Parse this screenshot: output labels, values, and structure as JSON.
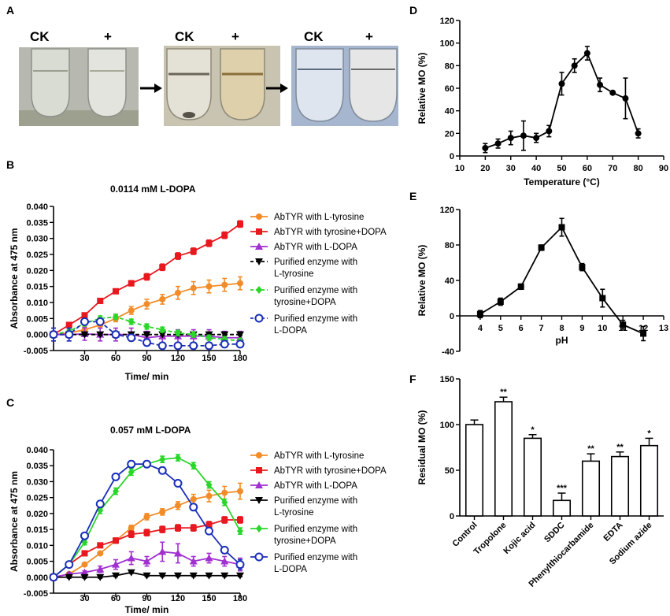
{
  "panels": {
    "A": {
      "label": "A",
      "tubes": [
        {
          "ck_label": "CK",
          "plus_label": "+"
        },
        {
          "ck_label": "CK",
          "plus_label": "+"
        },
        {
          "ck_label": "CK",
          "plus_label": "+"
        }
      ]
    }
  },
  "chart_data": [
    {
      "panel": "B",
      "type": "line",
      "title": "0.0114 mM L-DOPA",
      "xlabel": "Time/ min",
      "ylabel": "Absorbance at 475 nm",
      "xlim": [
        0,
        180
      ],
      "ylim": [
        -0.005,
        0.04
      ],
      "xticks": [
        30,
        60,
        90,
        120,
        150,
        180
      ],
      "yticks": [
        -0.005,
        0,
        0.005,
        0.01,
        0.015,
        0.02,
        0.025,
        0.03,
        0.035,
        0.04
      ],
      "ytick_labels": [
        "-0.005",
        "0.000",
        "0.005",
        "0.010",
        "0.015",
        "0.020",
        "0.025",
        "0.030",
        "0.035",
        "0.040"
      ],
      "series": [
        {
          "name": "AbTYR with L-tyrosine",
          "legend_lines": [
            "AbTYR with L-tyrosine"
          ],
          "color": "#f28c28",
          "marker": "circle",
          "dash": false,
          "x": [
            0,
            15,
            30,
            45,
            60,
            75,
            90,
            105,
            120,
            135,
            150,
            165,
            180
          ],
          "y": [
            0,
            0.0005,
            0.0015,
            0.003,
            0.005,
            0.0075,
            0.0095,
            0.011,
            0.013,
            0.0145,
            0.015,
            0.0155,
            0.016
          ],
          "err": [
            0.001,
            0.001,
            0.001,
            0.001,
            0.001,
            0.0012,
            0.0015,
            0.0015,
            0.002,
            0.002,
            0.002,
            0.002,
            0.002
          ]
        },
        {
          "name": "AbTYR with tyrosine+DOPA",
          "legend_lines": [
            "AbTYR with tyrosine+DOPA"
          ],
          "color": "#e8181e",
          "marker": "square",
          "dash": false,
          "x": [
            0,
            15,
            30,
            45,
            60,
            75,
            90,
            105,
            120,
            135,
            150,
            165,
            180
          ],
          "y": [
            0,
            0.003,
            0.006,
            0.0105,
            0.0135,
            0.016,
            0.018,
            0.021,
            0.0245,
            0.026,
            0.0285,
            0.031,
            0.0345
          ],
          "err": [
            0.0005,
            0.0005,
            0.0006,
            0.0006,
            0.0006,
            0.0008,
            0.001,
            0.001,
            0.001,
            0.001,
            0.001,
            0.001,
            0.001
          ]
        },
        {
          "name": "AbTYR with L-DOPA",
          "legend_lines": [
            "AbTYR with L-DOPA"
          ],
          "color": "#a030d0",
          "marker": "triangle",
          "dash": false,
          "x": [
            0,
            15,
            30,
            45,
            60,
            75,
            90,
            105,
            120,
            135,
            150,
            165,
            180
          ],
          "y": [
            0,
            0,
            0.0002,
            0,
            0,
            0,
            -0.001,
            -0.0005,
            -0.0005,
            -0.0005,
            -0.0005,
            -0.001,
            -0.001
          ],
          "err": [
            0.002,
            0.002,
            0.002,
            0.002,
            0.002,
            0.002,
            0.002,
            0.002,
            0.002,
            0.002,
            0.002,
            0.002,
            0.002
          ]
        },
        {
          "name": "Purified enzyme with L-tyrosine",
          "legend_lines": [
            "Purified enzyme with",
            "L-tyrosine"
          ],
          "color": "#000000",
          "marker": "triangle-down",
          "dash": true,
          "x": [
            0,
            15,
            30,
            45,
            60,
            75,
            90,
            105,
            120,
            135,
            150,
            165,
            180
          ],
          "y": [
            0,
            0,
            0,
            0,
            0,
            0,
            0,
            0,
            0,
            0,
            0,
            0,
            0
          ],
          "err": [
            0.0003,
            0.0003,
            0.0003,
            0.0003,
            0.0003,
            0.0003,
            0.0003,
            0.0003,
            0.0003,
            0.0003,
            0.0003,
            0.0003,
            0.0003
          ]
        },
        {
          "name": "Purified enzyme with tyrosine+DOPA",
          "legend_lines": [
            "Purified enzyme with",
            "tyrosine+DOPA"
          ],
          "color": "#2ad62a",
          "marker": "diamond",
          "dash": true,
          "x": [
            0,
            15,
            30,
            45,
            60,
            75,
            90,
            105,
            120,
            135,
            150,
            165,
            180
          ],
          "y": [
            0,
            0.001,
            0.0035,
            0.005,
            0.0055,
            0.004,
            0.0025,
            0.0015,
            0.0005,
            0,
            -0.001,
            -0.0015,
            -0.002
          ],
          "err": [
            0.0005,
            0.0005,
            0.0008,
            0.0008,
            0.0008,
            0.0008,
            0.0008,
            0.0008,
            0.0008,
            0.0008,
            0.0008,
            0.0008,
            0.0008
          ]
        },
        {
          "name": "Purified enzyme with L-DOPA",
          "legend_lines": [
            "Purified enzyme with",
            "L-DOPA"
          ],
          "color": "#1a2fb8",
          "marker": "circle-open",
          "dash": true,
          "x": [
            0,
            15,
            30,
            45,
            60,
            75,
            90,
            105,
            120,
            135,
            150,
            165,
            180
          ],
          "y": [
            0,
            0,
            0.004,
            0.004,
            0,
            -0.001,
            -0.0025,
            -0.0035,
            -0.0035,
            -0.0035,
            -0.0035,
            -0.003,
            -0.003
          ],
          "err": [
            0.002,
            0.002,
            0.001,
            0.001,
            0.001,
            0.001,
            0.001,
            0.001,
            0.001,
            0.001,
            0.001,
            0.001,
            0.001
          ]
        }
      ]
    },
    {
      "panel": "C",
      "type": "line",
      "title": "0.057 mM L-DOPA",
      "xlabel": "Time/ min",
      "ylabel": "Absorbance at 475 nm",
      "xlim": [
        0,
        180
      ],
      "ylim": [
        -0.005,
        0.04
      ],
      "xticks": [
        30,
        60,
        90,
        120,
        150,
        180
      ],
      "yticks": [
        -0.005,
        0,
        0.005,
        0.01,
        0.015,
        0.02,
        0.025,
        0.03,
        0.035,
        0.04
      ],
      "ytick_labels": [
        "-0.005",
        "0.000",
        "0.005",
        "0.010",
        "0.015",
        "0.020",
        "0.025",
        "0.030",
        "0.035",
        "0.040"
      ],
      "series": [
        {
          "name": "AbTYR with L-tyrosine",
          "legend_lines": [
            "AbTYR with L-tyrosine"
          ],
          "color": "#f28c28",
          "marker": "circle",
          "dash": false,
          "x": [
            0,
            15,
            30,
            45,
            60,
            75,
            90,
            105,
            120,
            135,
            150,
            165,
            180
          ],
          "y": [
            0,
            0.001,
            0.004,
            0.0075,
            0.0115,
            0.0155,
            0.019,
            0.0205,
            0.0225,
            0.0245,
            0.0255,
            0.0265,
            0.027
          ],
          "err": [
            0.0005,
            0.0005,
            0.0005,
            0.0005,
            0.0006,
            0.0008,
            0.001,
            0.001,
            0.0012,
            0.0015,
            0.0018,
            0.002,
            0.0025
          ]
        },
        {
          "name": "AbTYR with tyrosine+DOPA",
          "legend_lines": [
            "AbTYR with tyrosine+DOPA"
          ],
          "color": "#e8181e",
          "marker": "square",
          "dash": false,
          "x": [
            0,
            15,
            30,
            45,
            60,
            75,
            90,
            105,
            120,
            135,
            150,
            165,
            180
          ],
          "y": [
            0,
            0.004,
            0.0075,
            0.01,
            0.0115,
            0.0135,
            0.014,
            0.015,
            0.0155,
            0.0155,
            0.0165,
            0.018,
            0.018
          ],
          "err": [
            0.0005,
            0.0005,
            0.0005,
            0.0006,
            0.0008,
            0.001,
            0.001,
            0.001,
            0.001,
            0.001,
            0.001,
            0.001,
            0.001
          ]
        },
        {
          "name": "AbTYR with L-DOPA",
          "legend_lines": [
            "AbTYR with L-DOPA"
          ],
          "color": "#a030d0",
          "marker": "triangle",
          "dash": false,
          "x": [
            0,
            15,
            30,
            45,
            60,
            75,
            90,
            105,
            120,
            135,
            150,
            165,
            180
          ],
          "y": [
            0,
            0.001,
            0.0015,
            0.0025,
            0.004,
            0.006,
            0.005,
            0.008,
            0.0075,
            0.005,
            0.006,
            0.005,
            0.004
          ],
          "err": [
            0.0005,
            0.0005,
            0.0005,
            0.001,
            0.0015,
            0.002,
            0.0015,
            0.003,
            0.003,
            0.0015,
            0.0015,
            0.0015,
            0.002
          ]
        },
        {
          "name": "Purified enzyme with L-tyrosine",
          "legend_lines": [
            "Purified enzyme with",
            "L-tyrosine"
          ],
          "color": "#000000",
          "marker": "triangle-down",
          "dash": false,
          "x": [
            0,
            15,
            30,
            45,
            60,
            75,
            90,
            105,
            120,
            135,
            150,
            165,
            180
          ],
          "y": [
            0,
            0,
            0,
            0,
            0.0005,
            0.0015,
            0.0005,
            0.0005,
            0.0005,
            0.0005,
            0.0005,
            0.0005,
            0.0005
          ],
          "err": [
            0.0003,
            0.0003,
            0.0003,
            0.0003,
            0.0003,
            0.0003,
            0.0003,
            0.0003,
            0.0003,
            0.0003,
            0.0003,
            0.0003,
            0.0003
          ]
        },
        {
          "name": "Purified enzyme with tyrosine+DOPA",
          "legend_lines": [
            "Purified enzyme with",
            "tyrosine+DOPA"
          ],
          "color": "#2ad62a",
          "marker": "diamond",
          "dash": false,
          "x": [
            0,
            15,
            30,
            45,
            60,
            75,
            90,
            105,
            120,
            135,
            150,
            165,
            180
          ],
          "y": [
            0,
            0.004,
            0.011,
            0.021,
            0.027,
            0.033,
            0.0355,
            0.037,
            0.0375,
            0.035,
            0.029,
            0.0235,
            0.0145
          ],
          "err": [
            0.0005,
            0.0005,
            0.0008,
            0.001,
            0.001,
            0.001,
            0.001,
            0.001,
            0.001,
            0.001,
            0.001,
            0.001,
            0.001
          ]
        },
        {
          "name": "Purified enzyme with L-DOPA",
          "legend_lines": [
            "Purified enzyme with",
            "L-DOPA"
          ],
          "color": "#1a2fb8",
          "marker": "circle-open",
          "dash": false,
          "x": [
            0,
            15,
            30,
            45,
            60,
            75,
            90,
            105,
            120,
            135,
            150,
            165,
            180
          ],
          "y": [
            0,
            0.004,
            0.013,
            0.023,
            0.0315,
            0.0355,
            0.0355,
            0.0335,
            0.0295,
            0.022,
            0.0145,
            0.0085,
            0.004
          ],
          "err": [
            0.0005,
            0.0005,
            0.0008,
            0.0008,
            0.001,
            0.001,
            0.001,
            0.001,
            0.001,
            0.001,
            0.001,
            0.001,
            0.0015
          ]
        }
      ]
    },
    {
      "panel": "D",
      "type": "line",
      "title": "",
      "xlabel": "Temperature (°C)",
      "ylabel": "Relative MO (%)",
      "xlim": [
        10,
        90
      ],
      "ylim": [
        0,
        120
      ],
      "xticks": [
        10,
        20,
        30,
        40,
        50,
        60,
        70,
        80,
        90
      ],
      "yticks": [
        0,
        20,
        40,
        60,
        80,
        100,
        120
      ],
      "series": [
        {
          "name": "Relative MO",
          "color": "#000000",
          "marker": "circle",
          "dash": false,
          "x": [
            20,
            25,
            30,
            35,
            40,
            45,
            50,
            55,
            60,
            65,
            70,
            75,
            80
          ],
          "y": [
            7,
            11,
            16,
            18,
            16,
            22,
            64,
            80,
            91,
            63,
            56,
            51,
            20
          ],
          "err": [
            4,
            4,
            6,
            13,
            4,
            5,
            10,
            6,
            6,
            6,
            0,
            18,
            4
          ]
        }
      ]
    },
    {
      "panel": "E",
      "type": "line",
      "title": "",
      "xlabel": "pH",
      "ylabel": "Relative MO (%)",
      "xlim": [
        3,
        13
      ],
      "ylim": [
        -40,
        120
      ],
      "xticks": [
        4,
        5,
        6,
        7,
        8,
        9,
        10,
        11,
        12,
        13
      ],
      "yticks": [
        -40,
        0,
        40,
        80,
        120
      ],
      "series": [
        {
          "name": "Relative MO",
          "color": "#000000",
          "marker": "square",
          "dash": false,
          "x": [
            4,
            5,
            6,
            7,
            8,
            9,
            10,
            11,
            12
          ],
          "y": [
            2,
            16,
            33,
            77,
            100,
            55,
            20,
            -10,
            -20
          ],
          "err": [
            4,
            4,
            3,
            3,
            10,
            4,
            10,
            5,
            8
          ]
        }
      ]
    },
    {
      "panel": "F",
      "type": "bar",
      "title": "",
      "xlabel": "",
      "ylabel": "Residual MO (%)",
      "ylim": [
        0,
        150
      ],
      "yticks": [
        0,
        50,
        100,
        150
      ],
      "categories": [
        "Control",
        "Tropolone",
        "Kojic acid",
        "SDDC",
        "Phenylthiocarbamide",
        "EDTA",
        "Sodium azide"
      ],
      "values": [
        100,
        125,
        85,
        17,
        60,
        65,
        77
      ],
      "err": [
        5,
        5,
        4,
        8,
        8,
        5,
        8
      ],
      "significance": [
        "",
        "**",
        "*",
        "***",
        "**",
        "**",
        "*"
      ]
    }
  ]
}
